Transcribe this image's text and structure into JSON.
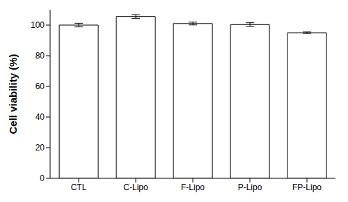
{
  "chart_data": {
    "type": "bar",
    "y_label": "Cell viability (%)",
    "categories": [
      "CTL",
      "C-Lipo",
      "F-Lipo",
      "P-Lipo",
      "FP-Lipo"
    ],
    "values": [
      100,
      105.6,
      101,
      100.3,
      95
    ],
    "errors": [
      1.2,
      1.2,
      0.9,
      1.2,
      0.5
    ],
    "color": "#ffffff",
    "ylim": [
      0,
      110
    ],
    "yticks": [
      0,
      20,
      40,
      60,
      80,
      100
    ],
    "grid": false
  }
}
